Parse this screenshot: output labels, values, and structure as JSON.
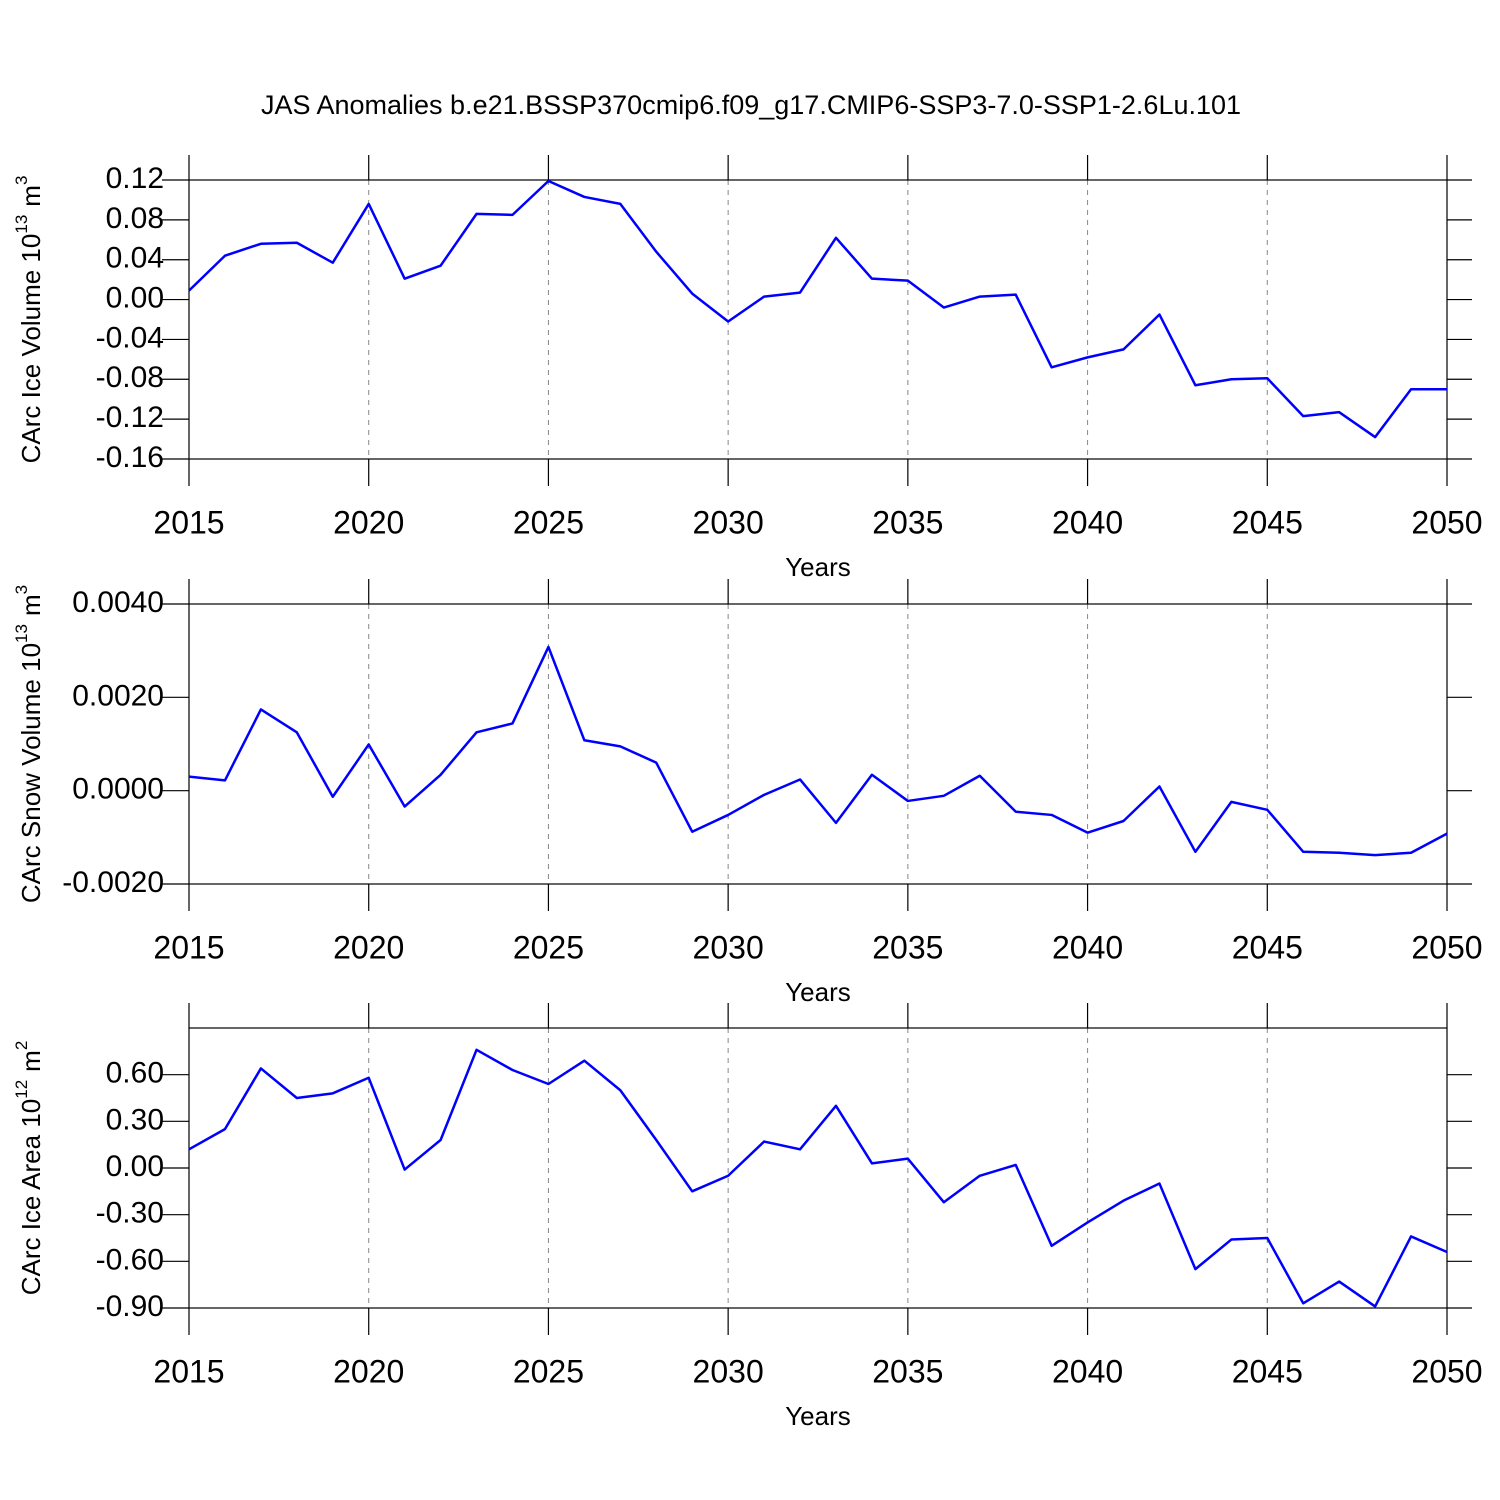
{
  "chart_data": [
    {
      "type": "line",
      "title": "JAS Anomalies b.e21.BSSP370cmip6.f09_g17.CMIP6-SSP3-7.0-SSP1-2.6Lu.101",
      "ylabel": "CArc Ice Volume 10",
      "ylabel_exp": "13",
      "ylabel_unit": "m",
      "ylabel_unit_exp": "3",
      "xlabel": "Years",
      "x": [
        2015,
        2016,
        2017,
        2018,
        2019,
        2020,
        2021,
        2022,
        2023,
        2024,
        2025,
        2026,
        2027,
        2028,
        2029,
        2030,
        2031,
        2032,
        2033,
        2034,
        2035,
        2036,
        2037,
        2038,
        2039,
        2040,
        2041,
        2042,
        2043,
        2044,
        2045,
        2046,
        2047,
        2048,
        2049,
        2050
      ],
      "series": [
        {
          "color": "#0000ff",
          "values": [
            0.009,
            0.044,
            0.056,
            0.057,
            0.037,
            0.096,
            0.021,
            0.034,
            0.086,
            0.085,
            0.119,
            0.103,
            0.096,
            0.048,
            0.006,
            -0.022,
            0.003,
            0.007,
            0.062,
            0.021,
            0.019,
            -0.008,
            0.003,
            0.005,
            -0.068,
            -0.058,
            -0.05,
            -0.015,
            -0.086,
            -0.08,
            -0.079,
            -0.117,
            -0.113,
            -0.138,
            -0.09,
            -0.09
          ]
        }
      ],
      "xlim": [
        2015,
        2050
      ],
      "xticks": [
        2015,
        2020,
        2025,
        2030,
        2035,
        2040,
        2045,
        2050
      ],
      "ylim": [
        -0.16,
        0.12
      ],
      "yticks": [
        {
          "value": 0.12,
          "label": "0.12"
        },
        {
          "value": 0.08,
          "label": "0.08"
        },
        {
          "value": 0.04,
          "label": "0.04"
        },
        {
          "value": 0,
          "label": "0.00"
        },
        {
          "value": -0.04,
          "label": "-0.04"
        },
        {
          "value": -0.08,
          "label": "-0.08"
        },
        {
          "value": -0.12,
          "label": "-0.12"
        },
        {
          "value": -0.16,
          "label": "-0.16"
        }
      ],
      "grid": true
    },
    {
      "type": "line",
      "ylabel": "CArc Snow Volume 10",
      "ylabel_exp": "13",
      "ylabel_unit": "m",
      "ylabel_unit_exp": "3",
      "xlabel": "Years",
      "x": [
        2015,
        2016,
        2017,
        2018,
        2019,
        2020,
        2021,
        2022,
        2023,
        2024,
        2025,
        2026,
        2027,
        2028,
        2029,
        2030,
        2031,
        2032,
        2033,
        2034,
        2035,
        2036,
        2037,
        2038,
        2039,
        2040,
        2041,
        2042,
        2043,
        2044,
        2045,
        2046,
        2047,
        2048,
        2049,
        2050
      ],
      "series": [
        {
          "color": "#0000ff",
          "values": [
            0.0003,
            0.00022,
            0.00174,
            0.00125,
            -0.00013,
            0.00099,
            -0.00034,
            0.00034,
            0.00125,
            0.00144,
            0.00308,
            0.00108,
            0.00095,
            0.0006,
            -0.00088,
            -0.00052,
            -9e-05,
            0.00024,
            -0.00069,
            0.00034,
            -0.00022,
            -0.00011,
            0.00032,
            -0.00045,
            -0.00052,
            -0.0009,
            -0.00065,
            9e-05,
            -0.00131,
            -0.00024,
            -0.00041,
            -0.00131,
            -0.00133,
            -0.00138,
            -0.00133,
            -0.00092
          ]
        }
      ],
      "xlim": [
        2015,
        2050
      ],
      "xticks": [
        2015,
        2020,
        2025,
        2030,
        2035,
        2040,
        2045,
        2050
      ],
      "ylim": [
        -0.002,
        0.004
      ],
      "yticks": [
        {
          "value": 0.004,
          "label": "0.0040"
        },
        {
          "value": 0.002,
          "label": "0.0020"
        },
        {
          "value": 0,
          "label": "0.0000"
        },
        {
          "value": -0.002,
          "label": "-0.0020"
        }
      ],
      "grid": true
    },
    {
      "type": "line",
      "ylabel": "CArc Ice Area 10",
      "ylabel_exp": "12",
      "ylabel_unit": "m",
      "ylabel_unit_exp": "2",
      "xlabel": "Years",
      "x": [
        2015,
        2016,
        2017,
        2018,
        2019,
        2020,
        2021,
        2022,
        2023,
        2024,
        2025,
        2026,
        2027,
        2028,
        2029,
        2030,
        2031,
        2032,
        2033,
        2034,
        2035,
        2036,
        2037,
        2038,
        2039,
        2040,
        2041,
        2042,
        2043,
        2044,
        2045,
        2046,
        2047,
        2048,
        2049,
        2050
      ],
      "series": [
        {
          "color": "#0000ff",
          "values": [
            0.12,
            0.25,
            0.64,
            0.45,
            0.48,
            0.58,
            -0.01,
            0.18,
            0.76,
            0.63,
            0.54,
            0.69,
            0.5,
            0.18,
            -0.15,
            -0.05,
            0.17,
            0.12,
            0.4,
            0.03,
            0.06,
            -0.22,
            -0.05,
            0.02,
            -0.5,
            -0.35,
            -0.21,
            -0.1,
            -0.65,
            -0.46,
            -0.45,
            -0.87,
            -0.73,
            -0.89,
            -0.44,
            -0.54
          ]
        }
      ],
      "xlim": [
        2015,
        2050
      ],
      "xticks": [
        2015,
        2020,
        2025,
        2030,
        2035,
        2040,
        2045,
        2050
      ],
      "ylim": [
        -0.9,
        0.9
      ],
      "yticks": [
        {
          "value": 0.6,
          "label": "0.60"
        },
        {
          "value": 0.3,
          "label": "0.30"
        },
        {
          "value": 0,
          "label": "0.00"
        },
        {
          "value": -0.3,
          "label": "-0.30"
        },
        {
          "value": -0.6,
          "label": "-0.60"
        },
        {
          "value": -0.9,
          "label": "-0.90"
        }
      ],
      "grid": true
    }
  ]
}
